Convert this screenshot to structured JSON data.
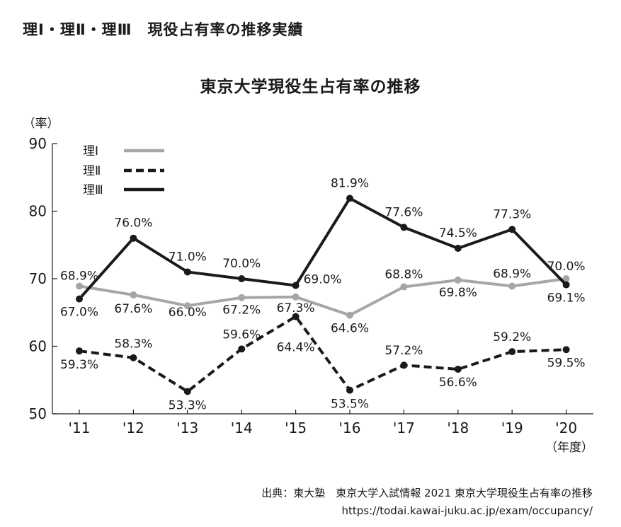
{
  "heading": "理Ⅰ・理Ⅱ・理Ⅲ　現役占有率の推移実績",
  "source": {
    "line": "出典：東大塾　東京大学入試情報 2021 東京大学現役生占有率の推移",
    "url": "https://todai.kawai-juku.ac.jp/exam/occupancy/"
  },
  "chart_data": {
    "type": "line",
    "title": "東京大学現役生占有率の推移",
    "ylabel": "（率）",
    "xlabel": "（年度）",
    "ylim": [
      50,
      90
    ],
    "yticks": [
      50,
      60,
      70,
      80,
      90
    ],
    "categories": [
      "'11",
      "'12",
      "'13",
      "'14",
      "'15",
      "'16",
      "'17",
      "'18",
      "'19",
      "'20"
    ],
    "series": [
      {
        "name": "理Ⅰ",
        "color": "#a6a6a6",
        "style": "solid",
        "values": [
          68.9,
          67.6,
          66.0,
          67.2,
          67.3,
          64.6,
          68.8,
          69.8,
          68.9,
          70.0
        ],
        "labels": [
          "68.9%",
          "67.6%",
          "66.0%",
          "67.2%",
          "67.3%",
          "64.6%",
          "68.8%",
          "69.8%",
          "68.9%",
          "70.0%"
        ]
      },
      {
        "name": "理Ⅱ",
        "color": "#1a1a1a",
        "style": "dashed",
        "values": [
          59.3,
          58.3,
          53.3,
          59.6,
          64.4,
          53.5,
          57.2,
          56.6,
          59.2,
          59.5
        ],
        "labels": [
          "59.3%",
          "58.3%",
          "53.3%",
          "59.6%",
          "64.4%",
          "53.5%",
          "57.2%",
          "56.6%",
          "59.2%",
          "59.5%"
        ]
      },
      {
        "name": "理Ⅲ",
        "color": "#1a1a1a",
        "style": "solid",
        "values": [
          67.0,
          76.0,
          71.0,
          70.0,
          69.0,
          81.9,
          77.6,
          74.5,
          77.3,
          69.1
        ],
        "labels": [
          "67.0%",
          "76.0%",
          "71.0%",
          "70.0%",
          "69.0%",
          "81.9%",
          "77.6%",
          "74.5%",
          "77.3%",
          "69.1%"
        ]
      }
    ]
  }
}
